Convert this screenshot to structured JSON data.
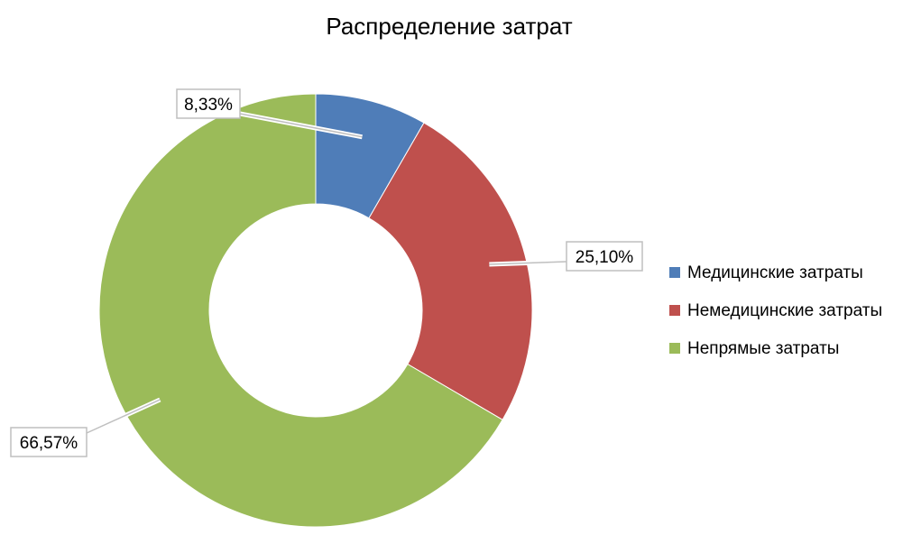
{
  "chart_data": {
    "type": "pie",
    "donut": true,
    "title": "Распределение затрат",
    "categories": [
      "Медицинские затраты",
      "Немедицинские затраты",
      "Непрямые затраты"
    ],
    "values": [
      8.33,
      25.1,
      66.57
    ],
    "data_labels": [
      "8,33%",
      "25,10%",
      "66,57%"
    ],
    "colors": [
      "#4f7db8",
      "#bf504d",
      "#9bbb59"
    ],
    "legend": {
      "placement": "right",
      "entries": [
        "Медицинские затраты",
        "Немедицинские затраты",
        "Непрямые затраты"
      ]
    }
  }
}
